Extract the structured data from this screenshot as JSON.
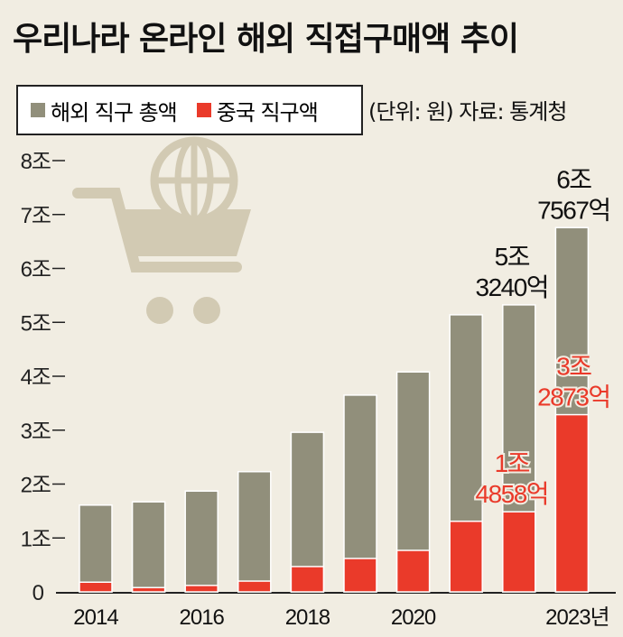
{
  "title": "우리나라 온라인 해외 직접구매액 추이",
  "legend": [
    {
      "label": "해외 직구 총액",
      "color": "#918f7b"
    },
    {
      "label": "중국 직구액",
      "color": "#ea3a2a"
    }
  ],
  "note": "(단위: 원) 자료: 통계청",
  "icon": "shopping-cart-globe-icon",
  "chart_data": {
    "type": "bar",
    "stacked_overlay": true,
    "categories": [
      "2014",
      "2015",
      "2016",
      "2017",
      "2018",
      "2019",
      "2020",
      "2021",
      "2022",
      "2023"
    ],
    "x_tick_labels": [
      "2014",
      "",
      "2016",
      "",
      "2018",
      "",
      "2020",
      "",
      "",
      "2023년"
    ],
    "y_ticks": [
      0,
      1,
      2,
      3,
      4,
      5,
      6,
      7,
      8
    ],
    "y_tick_labels": [
      "0",
      "1조",
      "2조",
      "3조",
      "4조",
      "5조",
      "6조",
      "7조",
      "8조"
    ],
    "ylim": [
      0,
      8
    ],
    "unit": "조 원",
    "series": [
      {
        "name": "해외 직구 총액",
        "color": "#918f7b",
        "values": [
          1.61,
          1.67,
          1.87,
          2.23,
          2.96,
          3.65,
          4.08,
          5.14,
          5.324,
          6.7567
        ]
      },
      {
        "name": "중국 직구액",
        "color": "#ea3a2a",
        "values": [
          0.18,
          0.08,
          0.12,
          0.2,
          0.47,
          0.62,
          0.77,
          1.31,
          1.4858,
          3.2873
        ]
      }
    ],
    "annotations": [
      {
        "category": "2022",
        "series": "해외 직구 총액",
        "lines": [
          "5조",
          "3240억"
        ],
        "color": "#111111"
      },
      {
        "category": "2023",
        "series": "해외 직구 총액",
        "lines": [
          "6조",
          "7567억"
        ],
        "color": "#111111"
      },
      {
        "category": "2022",
        "series": "중국 직구액",
        "lines": [
          "1조",
          "4858억"
        ],
        "color": "#ea3a2a"
      },
      {
        "category": "2023",
        "series": "중국 직구액",
        "lines": [
          "3조",
          "2873억"
        ],
        "color": "#ea3a2a"
      }
    ]
  }
}
